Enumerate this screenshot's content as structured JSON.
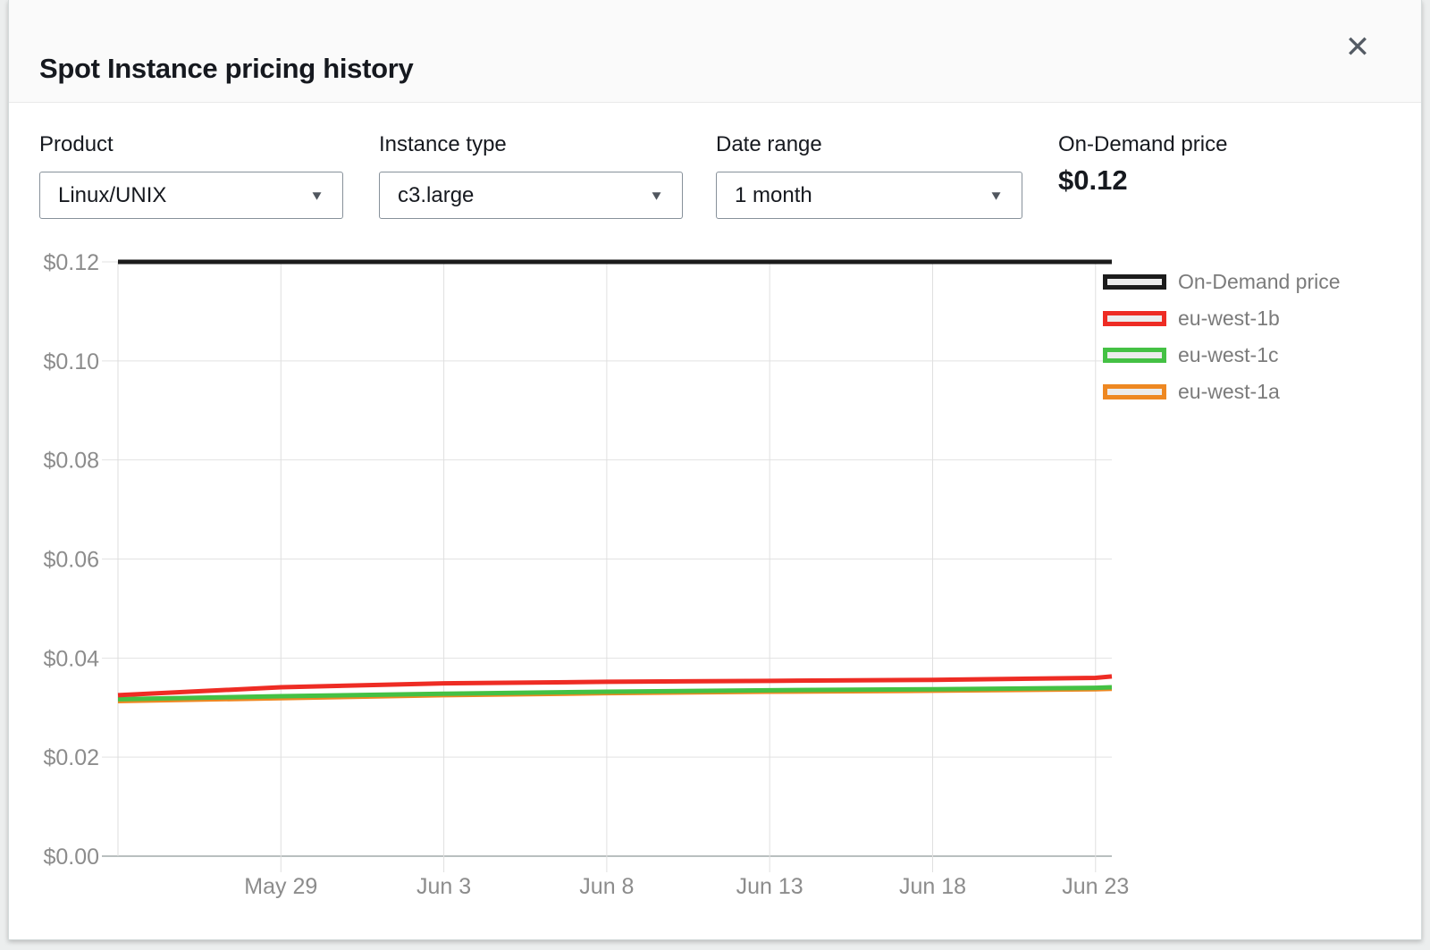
{
  "dialog": {
    "title": "Spot Instance pricing history"
  },
  "icons": {
    "close": "✕",
    "dropdown_caret": "▼"
  },
  "controls": {
    "product": {
      "label": "Product",
      "value": "Linux/UNIX"
    },
    "instance_type": {
      "label": "Instance type",
      "value": "c3.large"
    },
    "date_range": {
      "label": "Date range",
      "value": "1 month"
    },
    "on_demand_price": {
      "label": "On-Demand price",
      "value": "$0.12"
    }
  },
  "legend": [
    {
      "label": "On-Demand price",
      "color": "#1c1c1c"
    },
    {
      "label": "eu-west-1b",
      "color": "#ee2c24"
    },
    {
      "label": "eu-west-1c",
      "color": "#44c144"
    },
    {
      "label": "eu-west-1a",
      "color": "#ee8822"
    }
  ],
  "chart_data": {
    "type": "line",
    "title": "Spot Instance pricing history",
    "xlabel": "",
    "ylabel": "",
    "ylim": [
      0,
      0.12
    ],
    "x_range": [
      0,
      30.5
    ],
    "grid": true,
    "legend_position": "right",
    "y_ticks": [
      {
        "label": "$0.00",
        "value": 0.0
      },
      {
        "label": "$0.02",
        "value": 0.02
      },
      {
        "label": "$0.04",
        "value": 0.04
      },
      {
        "label": "$0.06",
        "value": 0.06
      },
      {
        "label": "$0.08",
        "value": 0.08
      },
      {
        "label": "$0.10",
        "value": 0.1
      },
      {
        "label": "$0.12",
        "value": 0.12
      }
    ],
    "x_ticks": [
      {
        "label": "May 29",
        "day": 5
      },
      {
        "label": "Jun 3",
        "day": 10
      },
      {
        "label": "Jun 8",
        "day": 15
      },
      {
        "label": "Jun 13",
        "day": 20
      },
      {
        "label": "Jun 18",
        "day": 25
      },
      {
        "label": "Jun 23",
        "day": 30
      }
    ],
    "series": [
      {
        "name": "eu-west-1a",
        "color": "#ee8822",
        "width": 5,
        "x": [
          0,
          5,
          10,
          15,
          20,
          25,
          30,
          30.5
        ],
        "values": [
          0.0313,
          0.0319,
          0.0325,
          0.0329,
          0.0332,
          0.0334,
          0.0337,
          0.0338
        ]
      },
      {
        "name": "eu-west-1c",
        "color": "#44c144",
        "width": 5,
        "x": [
          0,
          5,
          10,
          15,
          20,
          25,
          30,
          30.5
        ],
        "values": [
          0.0317,
          0.0323,
          0.0328,
          0.0332,
          0.0335,
          0.0337,
          0.034,
          0.0341
        ]
      },
      {
        "name": "eu-west-1b",
        "color": "#ee2c24",
        "width": 5,
        "x": [
          0,
          5,
          10,
          15,
          20,
          25,
          30,
          30.5
        ],
        "values": [
          0.0325,
          0.0341,
          0.0349,
          0.0352,
          0.0354,
          0.0356,
          0.036,
          0.0363
        ]
      },
      {
        "name": "On-Demand price",
        "color": "#1c1c1c",
        "width": 5,
        "x": [
          0,
          30.5
        ],
        "values": [
          0.12,
          0.12
        ]
      }
    ]
  }
}
